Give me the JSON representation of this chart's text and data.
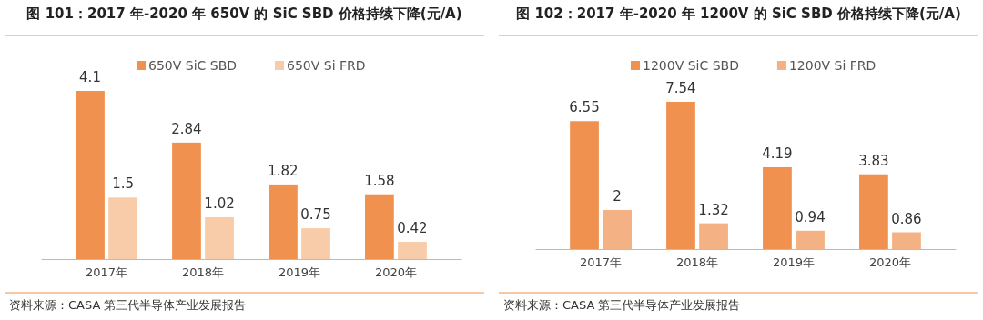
{
  "chart_data": [
    {
      "type": "bar",
      "title": "图 101：2017 年-2020 年 650V 的 SiC SBD 价格持续下降(元/A)",
      "categories": [
        "2017年",
        "2018年",
        "2019年",
        "2020年"
      ],
      "series": [
        {
          "name": "650V SiC SBD",
          "color": "#f0914f",
          "values": [
            4.1,
            2.84,
            1.82,
            1.58
          ]
        },
        {
          "name": "650V Si FRD",
          "color": "#f8cba9",
          "values": [
            1.5,
            1.02,
            0.75,
            0.42
          ]
        }
      ],
      "data_labels": true,
      "legend": "top",
      "annotations": [
        "资料来源：CASA 第三代半导体产业发展报告"
      ]
    },
    {
      "type": "bar",
      "title": "图 102：2017 年-2020 年 1200V 的 SiC SBD 价格持续下降(元/A)",
      "categories": [
        "2017年",
        "2018年",
        "2019年",
        "2020年"
      ],
      "series": [
        {
          "name": "1200V SiC SBD",
          "color": "#f0914f",
          "values": [
            6.55,
            7.54,
            4.19,
            3.83
          ]
        },
        {
          "name": "1200V Si FRD",
          "color": "#f4b183",
          "values": [
            2,
            1.32,
            0.94,
            0.86
          ]
        }
      ],
      "data_labels": true,
      "legend": "top",
      "annotations": [
        "资料来源：CASA 第三代半导体产业发展报告"
      ]
    }
  ]
}
